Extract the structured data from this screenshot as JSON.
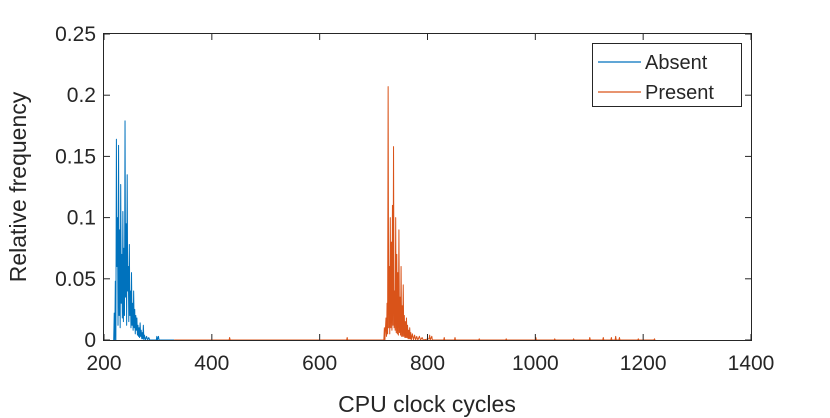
{
  "chart_data": {
    "type": "line",
    "title": "",
    "xlabel": "CPU clock cycles",
    "ylabel": "Relative frequency",
    "xlim": [
      200,
      1400
    ],
    "ylim": [
      0,
      0.25
    ],
    "xticks": [
      200,
      400,
      600,
      800,
      1000,
      1200,
      1400
    ],
    "xtick_labels": [
      "200",
      "400",
      "600",
      "800",
      "1000",
      "1200",
      "1400"
    ],
    "yticks": [
      0,
      0.05,
      0.1,
      0.15,
      0.2,
      0.25
    ],
    "ytick_labels": [
      "0",
      "0.05",
      "0.1",
      "0.15",
      "0.2",
      "0.25"
    ],
    "grid": false,
    "legend_position": "top-right",
    "series": [
      {
        "name": "Absent",
        "color": "#0072BD",
        "points": [
          [
            218,
            0
          ],
          [
            219,
            0.022
          ],
          [
            220,
            0
          ],
          [
            221,
            0.048
          ],
          [
            222,
            0
          ],
          [
            223,
            0.164
          ],
          [
            224,
            0.06
          ],
          [
            225,
            0.1
          ],
          [
            226,
            0.012
          ],
          [
            227,
            0.159
          ],
          [
            228,
            0.02
          ],
          [
            229,
            0.09
          ],
          [
            230,
            0.01
          ],
          [
            231,
            0.127
          ],
          [
            232,
            0.03
          ],
          [
            233,
            0.07
          ],
          [
            234,
            0.018
          ],
          [
            235,
            0.105
          ],
          [
            236,
            0.015
          ],
          [
            237,
            0.075
          ],
          [
            238,
            0.02
          ],
          [
            239,
            0.179
          ],
          [
            240,
            0.035
          ],
          [
            241,
            0.095
          ],
          [
            242,
            0.012
          ],
          [
            243,
            0.135
          ],
          [
            244,
            0.04
          ],
          [
            245,
            0.06
          ],
          [
            246,
            0.015
          ],
          [
            247,
            0.078
          ],
          [
            248,
            0.02
          ],
          [
            249,
            0.04
          ],
          [
            250,
            0.01
          ],
          [
            251,
            0.055
          ],
          [
            252,
            0.012
          ],
          [
            253,
            0.03
          ],
          [
            254,
            0.008
          ],
          [
            255,
            0.04
          ],
          [
            256,
            0.01
          ],
          [
            257,
            0.025
          ],
          [
            258,
            0.005
          ],
          [
            259,
            0.02
          ],
          [
            260,
            0.008
          ],
          [
            261,
            0.018
          ],
          [
            262,
            0.004
          ],
          [
            263,
            0.012
          ],
          [
            264,
            0.003
          ],
          [
            265,
            0.01
          ],
          [
            266,
            0.002
          ],
          [
            267,
            0.014
          ],
          [
            268,
            0.003
          ],
          [
            269,
            0.008
          ],
          [
            270,
            0.001
          ],
          [
            271,
            0.006
          ],
          [
            272,
            0.001
          ],
          [
            273,
            0.012
          ],
          [
            274,
            0
          ],
          [
            275,
            0.004
          ],
          [
            277,
            0
          ],
          [
            279,
            0.003
          ],
          [
            281,
            0
          ],
          [
            283,
            0.002
          ],
          [
            285,
            0
          ],
          [
            297,
            0
          ],
          [
            298,
            0.003
          ],
          [
            299,
            0
          ],
          [
            301,
            0.003
          ],
          [
            302,
            0
          ],
          [
            330,
            0
          ]
        ]
      },
      {
        "name": "Present",
        "color": "#D95319",
        "points": [
          [
            330,
            0
          ],
          [
            432,
            0
          ],
          [
            433,
            0.002
          ],
          [
            434,
            0
          ],
          [
            650,
            0
          ],
          [
            651,
            0.002
          ],
          [
            652,
            0
          ],
          [
            719,
            0
          ],
          [
            720,
            0.01
          ],
          [
            721,
            0
          ],
          [
            723,
            0.018
          ],
          [
            724,
            0.003
          ],
          [
            725,
            0.03
          ],
          [
            726,
            0.005
          ],
          [
            727,
            0.207
          ],
          [
            728,
            0.01
          ],
          [
            729,
            0.06
          ],
          [
            730,
            0.005
          ],
          [
            731,
            0.1
          ],
          [
            732,
            0.01
          ],
          [
            733,
            0.08
          ],
          [
            734,
            0.008
          ],
          [
            735,
            0.11
          ],
          [
            736,
            0.012
          ],
          [
            737,
            0.158
          ],
          [
            738,
            0.01
          ],
          [
            739,
            0.04
          ],
          [
            740,
            0.008
          ],
          [
            741,
            0.1
          ],
          [
            742,
            0.006
          ],
          [
            743,
            0.07
          ],
          [
            744,
            0.005
          ],
          [
            745,
            0.055
          ],
          [
            746,
            0.004
          ],
          [
            747,
            0.09
          ],
          [
            748,
            0.006
          ],
          [
            749,
            0.035
          ],
          [
            750,
            0.004
          ],
          [
            751,
            0.06
          ],
          [
            752,
            0.003
          ],
          [
            753,
            0.028
          ],
          [
            754,
            0.003
          ],
          [
            755,
            0.045
          ],
          [
            756,
            0.003
          ],
          [
            757,
            0.02
          ],
          [
            758,
            0.002
          ],
          [
            759,
            0.015
          ],
          [
            760,
            0.002
          ],
          [
            761,
            0.018
          ],
          [
            762,
            0.002
          ],
          [
            763,
            0.012
          ],
          [
            764,
            0.001
          ],
          [
            765,
            0.008
          ],
          [
            766,
            0.001
          ],
          [
            767,
            0.01
          ],
          [
            768,
            0.001
          ],
          [
            769,
            0.006
          ],
          [
            770,
            0
          ],
          [
            772,
            0.005
          ],
          [
            774,
            0
          ],
          [
            776,
            0.004
          ],
          [
            778,
            0
          ],
          [
            780,
            0.003
          ],
          [
            782,
            0
          ],
          [
            785,
            0.003
          ],
          [
            787,
            0
          ],
          [
            790,
            0.002
          ],
          [
            792,
            0
          ],
          [
            803,
            0.001
          ],
          [
            804,
            0.004
          ],
          [
            805,
            0
          ],
          [
            808,
            0.003
          ],
          [
            809,
            0
          ],
          [
            830,
            0
          ],
          [
            831,
            0.002
          ],
          [
            832,
            0
          ],
          [
            850,
            0
          ],
          [
            851,
            0.002
          ],
          [
            852,
            0
          ],
          [
            895,
            0
          ],
          [
            896,
            0.001
          ],
          [
            897,
            0
          ],
          [
            945,
            0
          ],
          [
            946,
            0.001
          ],
          [
            947,
            0
          ],
          [
            1000,
            0
          ],
          [
            1001,
            0.002
          ],
          [
            1002,
            0
          ],
          [
            1035,
            0
          ],
          [
            1036,
            0.001
          ],
          [
            1037,
            0
          ],
          [
            1070,
            0
          ],
          [
            1071,
            0.001
          ],
          [
            1072,
            0
          ],
          [
            1100,
            0
          ],
          [
            1101,
            0.002
          ],
          [
            1102,
            0
          ],
          [
            1125,
            0
          ],
          [
            1126,
            0.002
          ],
          [
            1127,
            0
          ],
          [
            1140,
            0
          ],
          [
            1141,
            0.002
          ],
          [
            1142,
            0
          ],
          [
            1148,
            0
          ],
          [
            1149,
            0.003
          ],
          [
            1150,
            0
          ],
          [
            1155,
            0
          ],
          [
            1156,
            0.002
          ],
          [
            1157,
            0
          ],
          [
            1190,
            0
          ],
          [
            1191,
            0.001
          ],
          [
            1192,
            0
          ],
          [
            1220,
            0
          ],
          [
            1221,
            0.001
          ],
          [
            1222,
            0
          ]
        ]
      }
    ]
  }
}
